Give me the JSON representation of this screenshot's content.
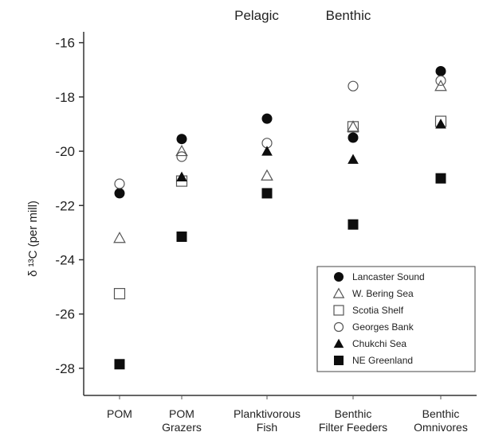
{
  "chart_data": {
    "type": "scatter",
    "top_labels": [
      "Pelagic",
      "Benthic"
    ],
    "ylabel": "δ ¹³C (per mill)",
    "ylim": [
      -29,
      -15.6
    ],
    "yticks": [
      -16,
      -18,
      -20,
      -22,
      -24,
      -26,
      -28
    ],
    "ytick_labels": [
      "-16",
      "-18",
      "-20",
      "-22",
      "-24",
      "-26",
      "-28"
    ],
    "categories": [
      [
        "POM"
      ],
      [
        "POM",
        "Grazers"
      ],
      [
        "Planktivorous",
        "Fish"
      ],
      [
        "Benthic",
        "Filter Feeders"
      ],
      [
        "Benthic",
        "Omnivores"
      ]
    ],
    "grid": false,
    "legend_position": "bottom-right",
    "series": [
      {
        "name": "Lancaster Sound",
        "marker": "filled-circle",
        "values": [
          -21.55,
          -19.55,
          -18.8,
          -19.5,
          -17.05
        ]
      },
      {
        "name": "W. Bering Sea",
        "marker": "open-triangle",
        "values": [
          -23.2,
          -20.0,
          -20.9,
          -19.1,
          -17.6
        ]
      },
      {
        "name": "Scotia Shelf",
        "marker": "open-square",
        "values": [
          -25.25,
          -21.1,
          null,
          -19.1,
          -18.9
        ]
      },
      {
        "name": "Georges Bank",
        "marker": "open-circle",
        "values": [
          -21.2,
          -20.2,
          -19.7,
          -17.6,
          -17.4
        ]
      },
      {
        "name": "Chukchi Sea",
        "marker": "filled-triangle",
        "values": [
          null,
          -20.95,
          -20.0,
          -20.3,
          -19.0
        ]
      },
      {
        "name": "NE Greenland",
        "marker": "filled-square",
        "values": [
          -27.85,
          -23.15,
          -21.55,
          -22.7,
          -21.0
        ]
      }
    ]
  }
}
